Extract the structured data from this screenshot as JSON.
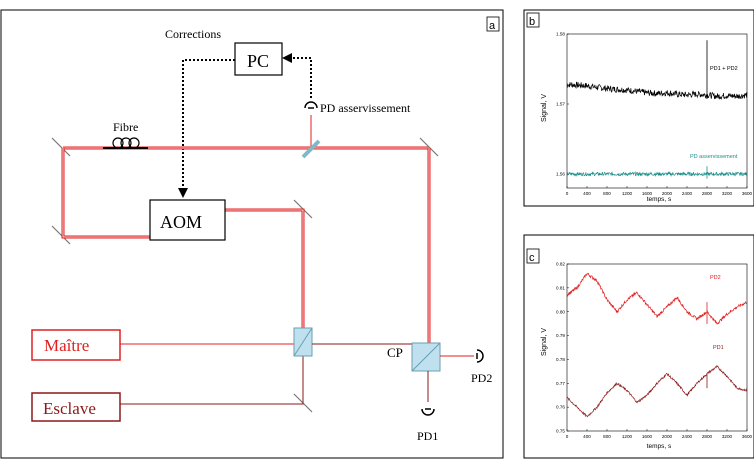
{
  "panel_a": {
    "label": "a",
    "corrections": "Corrections",
    "pc": "PC",
    "pd_servo": "PD asservissement",
    "fibre": "Fibre",
    "aom": "AOM",
    "master": "Maître",
    "slave": "Esclave",
    "cp": "CP",
    "pd1": "PD1",
    "pd2": "PD2",
    "colors": {
      "beam_red": "#e02020",
      "beam_dark": "#8b1a1a",
      "cube": "#bfe0ee"
    }
  },
  "panel_b": {
    "label": "b",
    "ylabel": "Signal, V",
    "xlabel": "temps, s",
    "annot_top": "PD1 + PD2",
    "annot_bottom": "PD asservissement"
  },
  "panel_c": {
    "label": "c",
    "ylabel": "Signal, V",
    "xlabel": "temps, s",
    "annot_top": "PD2",
    "annot_bottom": "PD1"
  },
  "chart_data": [
    {
      "type": "line",
      "title": "",
      "xlabel": "temps, s",
      "ylabel": "Signal, V",
      "xlim": [
        0,
        3600
      ],
      "ylim": [
        1.558,
        1.58
      ],
      "xticks": [
        "0",
        "400",
        "800",
        "1200",
        "1600",
        "2000",
        "2400",
        "2800",
        "3200",
        "3600"
      ],
      "yticks": [
        "1.56",
        "1.57",
        "1.58"
      ],
      "series": [
        {
          "name": "PD1 + PD2",
          "color": "#000000",
          "x": [
            0,
            200,
            400,
            600,
            800,
            1000,
            1200,
            1400,
            1600,
            1800,
            2000,
            2200,
            2400,
            2600,
            2800,
            3000,
            3200,
            3400,
            3600
          ],
          "y": [
            1.5728,
            1.5727,
            1.5726,
            1.5724,
            1.5722,
            1.5721,
            1.572,
            1.5718,
            1.5716,
            1.5715,
            1.5716,
            1.5714,
            1.5713,
            1.5714,
            1.5713,
            1.5711,
            1.5712,
            1.5711,
            1.5713
          ]
        },
        {
          "name": "PD asservissement",
          "color": "#1a8f8a",
          "x": [
            0,
            400,
            800,
            1200,
            1600,
            2000,
            2400,
            2800,
            3200,
            3600
          ],
          "y": [
            1.56,
            1.56,
            1.56,
            1.56,
            1.56,
            1.56,
            1.56,
            1.56,
            1.56,
            1.56
          ]
        }
      ],
      "spike_x": 2800
    },
    {
      "type": "line",
      "title": "",
      "xlabel": "temps, s",
      "ylabel": "Signal, V",
      "xlim": [
        0,
        3600
      ],
      "ylim": [
        0.75,
        0.82
      ],
      "xticks": [
        "0",
        "400",
        "800",
        "1200",
        "1600",
        "2000",
        "2400",
        "2800",
        "3200",
        "3600"
      ],
      "yticks": [
        "0.75",
        "0.76",
        "0.77",
        "0.78",
        "0.79",
        "0.80",
        "0.81",
        "0.82"
      ],
      "series": [
        {
          "name": "PD2",
          "color": "#e02020",
          "x": [
            0,
            200,
            400,
            600,
            800,
            1000,
            1200,
            1400,
            1600,
            1800,
            2000,
            2200,
            2400,
            2600,
            2800,
            3000,
            3200,
            3400,
            3600
          ],
          "y": [
            0.807,
            0.81,
            0.816,
            0.813,
            0.805,
            0.8,
            0.805,
            0.808,
            0.803,
            0.798,
            0.802,
            0.806,
            0.8,
            0.797,
            0.8,
            0.795,
            0.799,
            0.802,
            0.804
          ]
        },
        {
          "name": "PD1",
          "color": "#8b1a1a",
          "x": [
            0,
            200,
            400,
            600,
            800,
            1000,
            1200,
            1400,
            1600,
            1800,
            2000,
            2200,
            2400,
            2600,
            2800,
            3000,
            3200,
            3400,
            3600
          ],
          "y": [
            0.764,
            0.76,
            0.756,
            0.76,
            0.766,
            0.77,
            0.767,
            0.762,
            0.765,
            0.77,
            0.774,
            0.77,
            0.765,
            0.77,
            0.774,
            0.777,
            0.773,
            0.768,
            0.767
          ]
        }
      ],
      "spike_x": 2800
    }
  ]
}
